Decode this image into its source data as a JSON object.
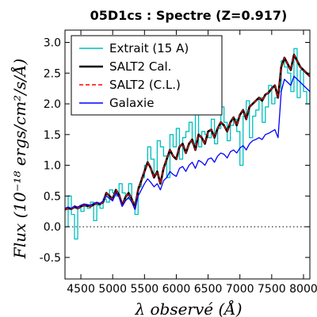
{
  "chart_data": {
    "type": "line",
    "title": "05D1cs : Spectre (Z=0.917)",
    "xlabel": "λ observé (Å)",
    "ylabel": "Flux (10⁻¹⁸ ergs/cm²/s/Å)",
    "xlim": [
      4250,
      8100
    ],
    "ylim": [
      -0.85,
      3.2
    ],
    "xticks": [
      4500,
      5000,
      5500,
      6000,
      6500,
      7000,
      7500,
      8000
    ],
    "yticks": [
      -0.5,
      0.0,
      0.5,
      1.0,
      1.5,
      2.0,
      2.5,
      3.0
    ],
    "ytick_labels": [
      "-0.5",
      "0.0",
      "0.5",
      "1.0",
      "1.5",
      "2.0",
      "2.5",
      "3.0"
    ],
    "zero_line": true,
    "legend_position": "top-left",
    "series": [
      {
        "name": "Extrait (15 A)",
        "color": "#00bfbf",
        "style": "step",
        "x": [
          4250,
          4300,
          4350,
          4400,
          4450,
          4500,
          4550,
          4600,
          4650,
          4700,
          4750,
          4800,
          4850,
          4900,
          4950,
          5000,
          5050,
          5100,
          5150,
          5200,
          5250,
          5300,
          5350,
          5400,
          5450,
          5500,
          5550,
          5600,
          5650,
          5700,
          5750,
          5800,
          5850,
          5900,
          5950,
          6000,
          6050,
          6100,
          6150,
          6200,
          6250,
          6300,
          6350,
          6400,
          6450,
          6500,
          6550,
          6600,
          6650,
          6700,
          6750,
          6800,
          6850,
          6900,
          6950,
          7000,
          7050,
          7100,
          7150,
          7200,
          7250,
          7300,
          7350,
          7400,
          7450,
          7500,
          7550,
          7600,
          7650,
          7700,
          7750,
          7800,
          7850,
          7900,
          7950,
          8000,
          8050,
          8100
        ],
        "y": [
          0.0,
          0.5,
          0.2,
          -0.2,
          0.3,
          0.25,
          0.35,
          0.3,
          0.4,
          0.1,
          0.35,
          0.3,
          0.45,
          0.4,
          0.6,
          0.55,
          0.5,
          0.7,
          0.55,
          0.45,
          0.7,
          0.4,
          0.2,
          0.65,
          0.8,
          1.0,
          1.3,
          1.1,
          0.85,
          1.4,
          1.3,
          1.15,
          0.8,
          1.5,
          1.3,
          1.6,
          1.1,
          1.45,
          1.55,
          1.7,
          1.35,
          1.85,
          1.3,
          1.55,
          1.5,
          1.45,
          1.75,
          1.35,
          1.6,
          1.95,
          1.7,
          1.4,
          1.65,
          1.75,
          1.55,
          1.0,
          1.8,
          2.05,
          1.45,
          1.8,
          1.9,
          2.1,
          1.7,
          1.95,
          2.3,
          2.0,
          2.1,
          2.2,
          2.7,
          2.6,
          2.5,
          2.2,
          2.9,
          2.1,
          2.55,
          2.2,
          2.0,
          2.2
        ]
      },
      {
        "name": "SALT2 Cal.",
        "color": "#000000",
        "style": "line",
        "x": [
          4250,
          4300,
          4350,
          4400,
          4450,
          4500,
          4550,
          4600,
          4650,
          4700,
          4750,
          4800,
          4850,
          4900,
          4950,
          5000,
          5050,
          5100,
          5150,
          5200,
          5250,
          5300,
          5350,
          5400,
          5450,
          5500,
          5550,
          5600,
          5650,
          5700,
          5750,
          5800,
          5850,
          5900,
          5950,
          6000,
          6050,
          6100,
          6150,
          6200,
          6250,
          6300,
          6350,
          6400,
          6450,
          6500,
          6550,
          6600,
          6650,
          6700,
          6750,
          6800,
          6850,
          6900,
          6950,
          7000,
          7050,
          7100,
          7150,
          7200,
          7250,
          7300,
          7350,
          7400,
          7450,
          7500,
          7550,
          7600,
          7650,
          7700,
          7750,
          7800,
          7850,
          7900,
          7950,
          8000,
          8050,
          8100
        ],
        "y": [
          0.28,
          0.3,
          0.29,
          0.32,
          0.3,
          0.33,
          0.35,
          0.34,
          0.33,
          0.36,
          0.38,
          0.37,
          0.4,
          0.55,
          0.5,
          0.45,
          0.6,
          0.52,
          0.35,
          0.48,
          0.55,
          0.45,
          0.3,
          0.6,
          0.75,
          0.9,
          1.05,
          0.95,
          0.8,
          0.9,
          0.7,
          0.95,
          1.1,
          1.25,
          1.15,
          1.1,
          1.3,
          1.35,
          1.2,
          1.35,
          1.42,
          1.25,
          1.5,
          1.45,
          1.35,
          1.55,
          1.58,
          1.45,
          1.6,
          1.7,
          1.65,
          1.55,
          1.7,
          1.78,
          1.65,
          1.82,
          1.9,
          1.75,
          1.95,
          2.0,
          2.05,
          2.1,
          2.05,
          2.15,
          2.18,
          2.25,
          2.3,
          2.1,
          2.6,
          2.75,
          2.65,
          2.55,
          2.8,
          2.7,
          2.6,
          2.55,
          2.5,
          2.45
        ]
      },
      {
        "name": "SALT2 (C.L.)",
        "color": "#ff0000",
        "style": "dashed",
        "x": [
          4250,
          4300,
          4350,
          4400,
          4450,
          4500,
          4550,
          4600,
          4650,
          4700,
          4750,
          4800,
          4850,
          4900,
          4950,
          5000,
          5050,
          5100,
          5150,
          5200,
          5250,
          5300,
          5350,
          5400,
          5450,
          5500,
          5550,
          5600,
          5650,
          5700,
          5750,
          5800,
          5850,
          5900,
          5950,
          6000,
          6050,
          6100,
          6150,
          6200,
          6250,
          6300,
          6350,
          6400,
          6450,
          6500,
          6550,
          6600,
          6650,
          6700,
          6750,
          6800,
          6850,
          6900,
          6950,
          7000,
          7050,
          7100,
          7150,
          7200,
          7250,
          7300,
          7350,
          7400,
          7450,
          7500,
          7550,
          7600,
          7650,
          7700,
          7750,
          7800,
          7850,
          7900,
          7950,
          8000,
          8050,
          8100
        ],
        "y": [
          0.28,
          0.3,
          0.29,
          0.32,
          0.3,
          0.33,
          0.35,
          0.34,
          0.33,
          0.36,
          0.38,
          0.37,
          0.4,
          0.55,
          0.5,
          0.45,
          0.6,
          0.52,
          0.35,
          0.48,
          0.55,
          0.45,
          0.3,
          0.6,
          0.75,
          0.9,
          1.05,
          0.95,
          0.8,
          0.9,
          0.7,
          0.95,
          1.1,
          1.25,
          1.15,
          1.1,
          1.3,
          1.35,
          1.2,
          1.35,
          1.42,
          1.25,
          1.5,
          1.45,
          1.35,
          1.55,
          1.58,
          1.45,
          1.6,
          1.7,
          1.65,
          1.55,
          1.7,
          1.78,
          1.65,
          1.82,
          1.9,
          1.75,
          1.95,
          2.0,
          2.05,
          2.1,
          2.05,
          2.15,
          2.18,
          2.25,
          2.3,
          2.1,
          2.6,
          2.75,
          2.65,
          2.55,
          2.8,
          2.7,
          2.6,
          2.55,
          2.5,
          2.45
        ]
      },
      {
        "name": "Galaxie",
        "color": "#0000ff",
        "style": "line",
        "x": [
          4250,
          4300,
          4350,
          4400,
          4450,
          4500,
          4550,
          4600,
          4650,
          4700,
          4750,
          4800,
          4850,
          4900,
          4950,
          5000,
          5050,
          5100,
          5150,
          5200,
          5250,
          5300,
          5350,
          5400,
          5450,
          5500,
          5550,
          5600,
          5650,
          5700,
          5750,
          5800,
          5850,
          5900,
          5950,
          6000,
          6050,
          6100,
          6150,
          6200,
          6250,
          6300,
          6350,
          6400,
          6450,
          6500,
          6550,
          6600,
          6650,
          6700,
          6750,
          6800,
          6850,
          6900,
          6950,
          7000,
          7050,
          7100,
          7150,
          7200,
          7250,
          7300,
          7350,
          7400,
          7450,
          7500,
          7550,
          7600,
          7650,
          7700,
          7750,
          7800,
          7850,
          7900,
          7950,
          8000,
          8050,
          8100
        ],
        "y": [
          0.3,
          0.32,
          0.3,
          0.34,
          0.32,
          0.35,
          0.37,
          0.36,
          0.35,
          0.38,
          0.4,
          0.38,
          0.42,
          0.5,
          0.46,
          0.42,
          0.55,
          0.48,
          0.33,
          0.42,
          0.48,
          0.4,
          0.28,
          0.5,
          0.6,
          0.7,
          0.78,
          0.72,
          0.65,
          0.7,
          0.6,
          0.75,
          0.8,
          0.9,
          0.85,
          0.82,
          0.95,
          0.98,
          0.9,
          1.0,
          1.05,
          0.95,
          1.08,
          1.05,
          1.0,
          1.1,
          1.12,
          1.05,
          1.15,
          1.2,
          1.18,
          1.12,
          1.22,
          1.25,
          1.2,
          1.28,
          1.32,
          1.25,
          1.35,
          1.4,
          1.42,
          1.45,
          1.42,
          1.5,
          1.52,
          1.55,
          1.58,
          1.45,
          2.2,
          2.4,
          2.35,
          2.3,
          2.45,
          2.4,
          2.35,
          2.3,
          2.25,
          2.2
        ]
      }
    ]
  }
}
